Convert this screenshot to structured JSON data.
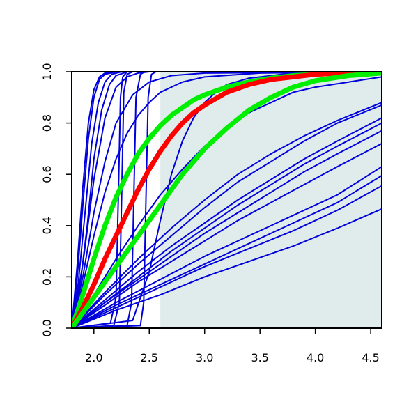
{
  "chart_data": {
    "type": "line",
    "title": "",
    "xlabel": "",
    "ylabel": "",
    "xlim": [
      1.8,
      4.6
    ],
    "ylim": [
      0,
      1
    ],
    "grid": false,
    "x_ticks": [
      "2.0",
      "2.5",
      "3.0",
      "3.5",
      "4.0",
      "4.5"
    ],
    "y_ticks": [
      "0.0",
      "0.2",
      "0.4",
      "0.6",
      "0.8",
      "1.0"
    ],
    "shaded_region": {
      "x_from": 2.6,
      "x_to": 4.6,
      "y_from": 0,
      "y_to": 1,
      "color": "#e0ecec"
    },
    "colors": {
      "blue": "#0000dd",
      "red": "#ff0000",
      "green": "#00ee00"
    },
    "series": [
      {
        "color": "blue",
        "x": [
          1.8,
          1.85,
          1.9,
          1.95,
          2.0,
          2.05,
          2.1,
          2.15,
          2.2,
          4.6
        ],
        "y": [
          0,
          0.25,
          0.55,
          0.8,
          0.93,
          0.98,
          0.995,
          1,
          1,
          1
        ]
      },
      {
        "color": "blue",
        "x": [
          1.8,
          1.85,
          1.9,
          1.95,
          2.0,
          2.05,
          2.1,
          2.2,
          4.6
        ],
        "y": [
          0,
          0.2,
          0.48,
          0.74,
          0.9,
          0.97,
          0.99,
          1,
          1
        ]
      },
      {
        "color": "blue",
        "x": [
          1.8,
          1.86,
          1.92,
          1.98,
          2.04,
          2.1,
          2.16,
          2.25,
          4.6
        ],
        "y": [
          0,
          0.18,
          0.45,
          0.72,
          0.88,
          0.96,
          0.99,
          1,
          1
        ]
      },
      {
        "color": "blue",
        "x": [
          1.8,
          1.87,
          1.94,
          2.0,
          2.07,
          2.14,
          2.2,
          2.3,
          4.6
        ],
        "y": [
          0,
          0.15,
          0.4,
          0.66,
          0.85,
          0.95,
          0.985,
          1,
          1
        ]
      },
      {
        "color": "blue",
        "x": [
          1.8,
          1.9,
          2.0,
          2.1,
          2.2,
          2.3,
          2.4,
          2.5,
          4.6
        ],
        "y": [
          0,
          0.25,
          0.58,
          0.82,
          0.94,
          0.98,
          0.995,
          1,
          1
        ]
      },
      {
        "color": "blue",
        "x": [
          1.8,
          1.9,
          2.0,
          2.1,
          2.2,
          2.35,
          2.5,
          2.7,
          3.0,
          4.6
        ],
        "y": [
          0,
          0.2,
          0.45,
          0.65,
          0.8,
          0.91,
          0.96,
          0.985,
          0.995,
          1
        ]
      },
      {
        "color": "blue",
        "x": [
          1.8,
          1.9,
          2.0,
          2.1,
          2.2,
          2.3,
          2.4,
          2.5,
          2.6,
          2.8,
          3.0,
          3.5,
          4.6
        ],
        "y": [
          0,
          0.17,
          0.36,
          0.53,
          0.66,
          0.76,
          0.83,
          0.88,
          0.92,
          0.96,
          0.98,
          0.995,
          1
        ]
      },
      {
        "color": "blue",
        "x": [
          1.8,
          2.15,
          2.2,
          2.22,
          2.24,
          2.26,
          2.3,
          4.6
        ],
        "y": [
          0,
          0.02,
          0.12,
          0.5,
          0.9,
          0.98,
          1,
          1
        ]
      },
      {
        "color": "blue",
        "x": [
          1.8,
          2.18,
          2.23,
          2.25,
          2.27,
          2.3,
          2.35,
          4.6
        ],
        "y": [
          0,
          0.01,
          0.1,
          0.5,
          0.92,
          0.99,
          1,
          1
        ]
      },
      {
        "color": "blue",
        "x": [
          1.8,
          2.3,
          2.34,
          2.36,
          2.38,
          2.42,
          2.46,
          4.6
        ],
        "y": [
          0,
          0.01,
          0.1,
          0.5,
          0.9,
          0.99,
          1,
          1
        ]
      },
      {
        "color": "blue",
        "x": [
          1.8,
          2.42,
          2.45,
          2.47,
          2.49,
          2.52,
          2.56,
          4.6
        ],
        "y": [
          0,
          0.01,
          0.1,
          0.5,
          0.9,
          0.99,
          1,
          1
        ]
      },
      {
        "color": "blue",
        "x": [
          1.8,
          2.35,
          2.5,
          2.6,
          2.7,
          2.8,
          2.9,
          3.0,
          3.1,
          3.2,
          3.4,
          3.7,
          4.0,
          4.6
        ],
        "y": [
          0,
          0.03,
          0.22,
          0.42,
          0.6,
          0.73,
          0.82,
          0.88,
          0.92,
          0.95,
          0.975,
          0.99,
          0.997,
          1
        ]
      },
      {
        "color": "blue",
        "x": [
          1.8,
          2.0,
          2.2,
          2.4,
          2.6,
          2.8,
          3.0,
          3.2,
          3.4,
          3.6,
          3.8,
          4.0,
          4.3,
          4.6
        ],
        "y": [
          0,
          0.13,
          0.27,
          0.4,
          0.52,
          0.62,
          0.71,
          0.78,
          0.84,
          0.88,
          0.92,
          0.94,
          0.96,
          0.98
        ]
      },
      {
        "color": "blue",
        "x": [
          1.8,
          2.1,
          2.4,
          2.7,
          3.0,
          3.3,
          3.6,
          3.9,
          4.2,
          4.6
        ],
        "y": [
          0,
          0.14,
          0.27,
          0.39,
          0.5,
          0.6,
          0.68,
          0.75,
          0.81,
          0.88
        ]
      },
      {
        "color": "blue",
        "x": [
          1.8,
          2.1,
          2.4,
          2.7,
          3.0,
          3.3,
          3.6,
          3.9,
          4.2,
          4.6
        ],
        "y": [
          0,
          0.13,
          0.25,
          0.36,
          0.47,
          0.57,
          0.65,
          0.73,
          0.8,
          0.87
        ]
      },
      {
        "color": "blue",
        "x": [
          1.8,
          2.1,
          2.4,
          2.7,
          3.0,
          3.3,
          3.6,
          3.9,
          4.2,
          4.6
        ],
        "y": [
          0,
          0.11,
          0.22,
          0.32,
          0.41,
          0.5,
          0.58,
          0.66,
          0.73,
          0.82
        ]
      },
      {
        "color": "blue",
        "x": [
          1.8,
          2.1,
          2.4,
          2.7,
          3.0,
          3.3,
          3.6,
          3.9,
          4.2,
          4.6
        ],
        "y": [
          0,
          0.1,
          0.2,
          0.3,
          0.39,
          0.48,
          0.56,
          0.64,
          0.71,
          0.8
        ]
      },
      {
        "color": "blue",
        "x": [
          1.8,
          2.1,
          2.4,
          2.7,
          3.0,
          3.3,
          3.6,
          3.9,
          4.2,
          4.6
        ],
        "y": [
          0,
          0.1,
          0.19,
          0.28,
          0.37,
          0.45,
          0.53,
          0.61,
          0.68,
          0.77
        ]
      },
      {
        "color": "blue",
        "x": [
          1.8,
          2.1,
          2.4,
          2.7,
          3.0,
          3.3,
          3.6,
          3.9,
          4.2,
          4.6
        ],
        "y": [
          0,
          0.09,
          0.18,
          0.26,
          0.34,
          0.42,
          0.49,
          0.56,
          0.63,
          0.72
        ]
      },
      {
        "color": "blue",
        "x": [
          1.8,
          2.2,
          2.6,
          3.0,
          3.4,
          3.8,
          4.2,
          4.6
        ],
        "y": [
          0,
          0.1,
          0.19,
          0.28,
          0.36,
          0.44,
          0.52,
          0.63
        ]
      },
      {
        "color": "blue",
        "x": [
          1.8,
          2.2,
          2.6,
          3.0,
          3.4,
          3.8,
          4.2,
          4.6
        ],
        "y": [
          0,
          0.09,
          0.17,
          0.25,
          0.33,
          0.41,
          0.49,
          0.595
        ]
      },
      {
        "color": "blue",
        "x": [
          1.8,
          2.2,
          2.6,
          3.0,
          3.4,
          3.8,
          4.2,
          4.6
        ],
        "y": [
          0,
          0.08,
          0.16,
          0.24,
          0.31,
          0.38,
          0.46,
          0.555
        ]
      },
      {
        "color": "blue",
        "x": [
          1.8,
          2.2,
          2.6,
          3.0,
          3.4,
          3.8,
          4.2,
          4.6
        ],
        "y": [
          0,
          0.07,
          0.13,
          0.2,
          0.26,
          0.32,
          0.39,
          0.465
        ]
      },
      {
        "color": "green",
        "x": [
          1.8,
          1.9,
          2.0,
          2.1,
          2.2,
          2.3,
          2.4,
          2.5,
          2.6,
          2.7,
          2.8,
          2.9,
          3.0,
          3.2,
          3.4,
          3.6,
          3.8,
          4.0,
          4.3,
          4.6
        ],
        "y": [
          0,
          0.13,
          0.27,
          0.4,
          0.51,
          0.6,
          0.68,
          0.74,
          0.79,
          0.83,
          0.86,
          0.89,
          0.91,
          0.94,
          0.96,
          0.975,
          0.985,
          0.99,
          0.996,
          1
        ]
      },
      {
        "color": "red",
        "x": [
          1.8,
          1.9,
          2.0,
          2.1,
          2.2,
          2.3,
          2.4,
          2.5,
          2.6,
          2.7,
          2.8,
          2.9,
          3.0,
          3.2,
          3.4,
          3.6,
          3.8,
          4.0,
          4.3,
          4.6
        ],
        "y": [
          0,
          0.08,
          0.17,
          0.27,
          0.36,
          0.45,
          0.54,
          0.62,
          0.69,
          0.75,
          0.8,
          0.84,
          0.87,
          0.92,
          0.95,
          0.97,
          0.98,
          0.99,
          0.996,
          1
        ]
      },
      {
        "color": "green",
        "x": [
          1.8,
          1.9,
          2.0,
          2.1,
          2.2,
          2.3,
          2.4,
          2.5,
          2.6,
          2.7,
          2.8,
          2.9,
          3.0,
          3.2,
          3.4,
          3.6,
          3.8,
          4.0,
          4.3,
          4.6
        ],
        "y": [
          0,
          0.06,
          0.12,
          0.18,
          0.24,
          0.3,
          0.36,
          0.42,
          0.48,
          0.54,
          0.6,
          0.65,
          0.7,
          0.78,
          0.85,
          0.9,
          0.94,
          0.965,
          0.985,
          0.995
        ]
      }
    ]
  }
}
